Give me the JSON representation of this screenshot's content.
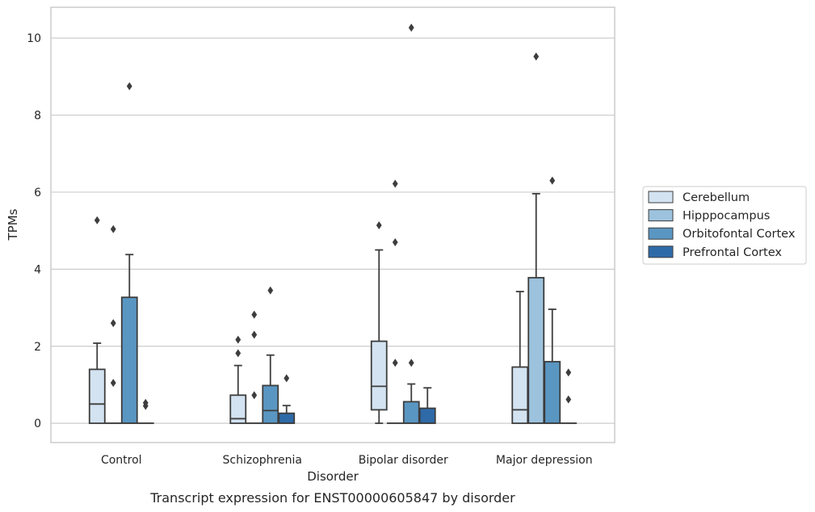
{
  "chart_data": {
    "type": "boxplot",
    "caption": "Transcript expression for ENST00000605847 by disorder",
    "xlabel": "Disorder",
    "ylabel": "TPMs",
    "ylim": [
      -0.5,
      10.8
    ],
    "yticks": [
      0,
      2,
      4,
      6,
      8,
      10
    ],
    "grid": "horizontal",
    "legend_position": "right",
    "categories": [
      "Control",
      "Schizophrenia",
      "Bipolar disorder",
      "Major depression"
    ],
    "series": [
      {
        "name": "Cerebellum",
        "color": "#d3e3f2",
        "boxes": [
          {
            "whislo": 0,
            "q1": 0,
            "med": 0.5,
            "q3": 1.4,
            "whishi": 2.08,
            "fliers": [
              5.27
            ]
          },
          {
            "whislo": 0,
            "q1": 0,
            "med": 0.12,
            "q3": 0.73,
            "whishi": 1.5,
            "fliers": [
              1.82,
              2.17
            ]
          },
          {
            "whislo": 0,
            "q1": 0.35,
            "med": 0.96,
            "q3": 2.13,
            "whishi": 4.5,
            "fliers": [
              5.14
            ]
          },
          {
            "whislo": 0,
            "q1": 0,
            "med": 0.35,
            "q3": 1.46,
            "whishi": 3.42,
            "fliers": []
          }
        ]
      },
      {
        "name": "Hipppocampus",
        "color": "#9dc2dd",
        "boxes": [
          {
            "whislo": 0,
            "q1": 0,
            "med": 0,
            "q3": 0,
            "whishi": 0,
            "fliers": [
              1.05,
              2.6,
              5.04
            ]
          },
          {
            "whislo": 0,
            "q1": 0,
            "med": 0,
            "q3": 0,
            "whishi": 0,
            "fliers": [
              0.73,
              2.3,
              2.82
            ]
          },
          {
            "whislo": 0,
            "q1": 0,
            "med": 0,
            "q3": 0,
            "whishi": 0,
            "fliers": [
              1.57,
              4.7,
              6.22
            ]
          },
          {
            "whislo": 0,
            "q1": 0,
            "med": 0,
            "q3": 3.78,
            "whishi": 5.96,
            "fliers": [
              9.52
            ]
          }
        ]
      },
      {
        "name": "Orbitofontal Cortex",
        "color": "#5a96c2",
        "boxes": [
          {
            "whislo": 0,
            "q1": 0,
            "med": 0,
            "q3": 3.27,
            "whishi": 4.38,
            "fliers": [
              8.75
            ]
          },
          {
            "whislo": 0,
            "q1": 0,
            "med": 0.33,
            "q3": 0.98,
            "whishi": 1.77,
            "fliers": [
              3.45
            ]
          },
          {
            "whislo": 0,
            "q1": 0,
            "med": 0,
            "q3": 0.56,
            "whishi": 1.02,
            "fliers": [
              1.57,
              10.27
            ]
          },
          {
            "whislo": 0,
            "q1": 0,
            "med": 0,
            "q3": 1.6,
            "whishi": 2.96,
            "fliers": [
              6.3
            ]
          }
        ]
      },
      {
        "name": "Prefrontal Cortex",
        "color": "#2f6aa8",
        "boxes": [
          {
            "whislo": 0,
            "q1": 0,
            "med": 0,
            "q3": 0,
            "whishi": 0,
            "fliers": [
              0.45,
              0.53
            ]
          },
          {
            "whislo": 0,
            "q1": 0,
            "med": 0,
            "q3": 0.26,
            "whishi": 0.46,
            "fliers": [
              1.17
            ]
          },
          {
            "whislo": 0,
            "q1": 0,
            "med": 0,
            "q3": 0.39,
            "whishi": 0.92,
            "fliers": []
          },
          {
            "whislo": 0,
            "q1": 0,
            "med": 0,
            "q3": 0,
            "whishi": 0,
            "fliers": [
              0.62,
              1.32
            ]
          }
        ]
      }
    ]
  }
}
